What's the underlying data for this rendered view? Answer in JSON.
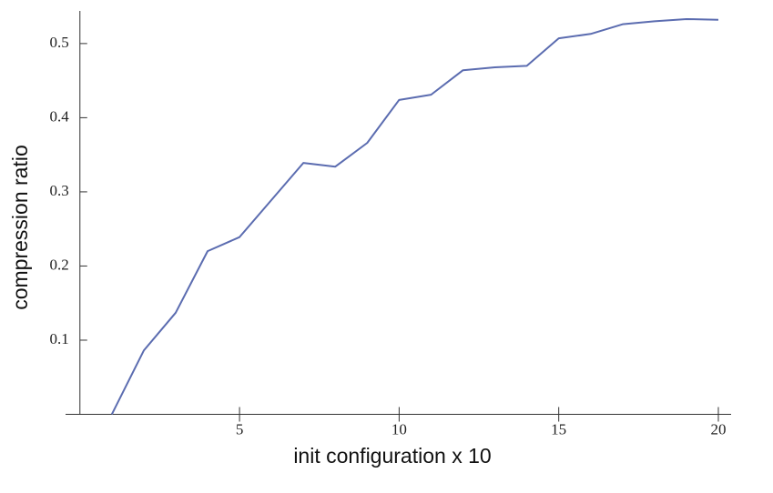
{
  "chart_data": {
    "type": "line",
    "x_label": "init configuration x 10",
    "y_label": "compression ratio",
    "series": [
      {
        "name": "compression ratio",
        "color": "#5b6cb0",
        "x": [
          1,
          2,
          3,
          4,
          5,
          6,
          7,
          8,
          9,
          10,
          11,
          12,
          13,
          14,
          15,
          16,
          17,
          18,
          19,
          20
        ],
        "values": [
          0.0,
          0.086,
          0.137,
          0.22,
          0.239,
          0.289,
          0.339,
          0.334,
          0.366,
          0.424,
          0.431,
          0.464,
          0.468,
          0.47,
          0.507,
          0.513,
          0.526,
          0.53,
          0.533,
          0.532
        ]
      }
    ],
    "xlim": [
      -0.45,
      20.4
    ],
    "ylim": [
      0,
      0.544
    ],
    "xticks": [
      5,
      10,
      15,
      20
    ],
    "yticks": [
      0.1,
      0.2,
      0.3,
      0.4,
      0.5
    ]
  }
}
